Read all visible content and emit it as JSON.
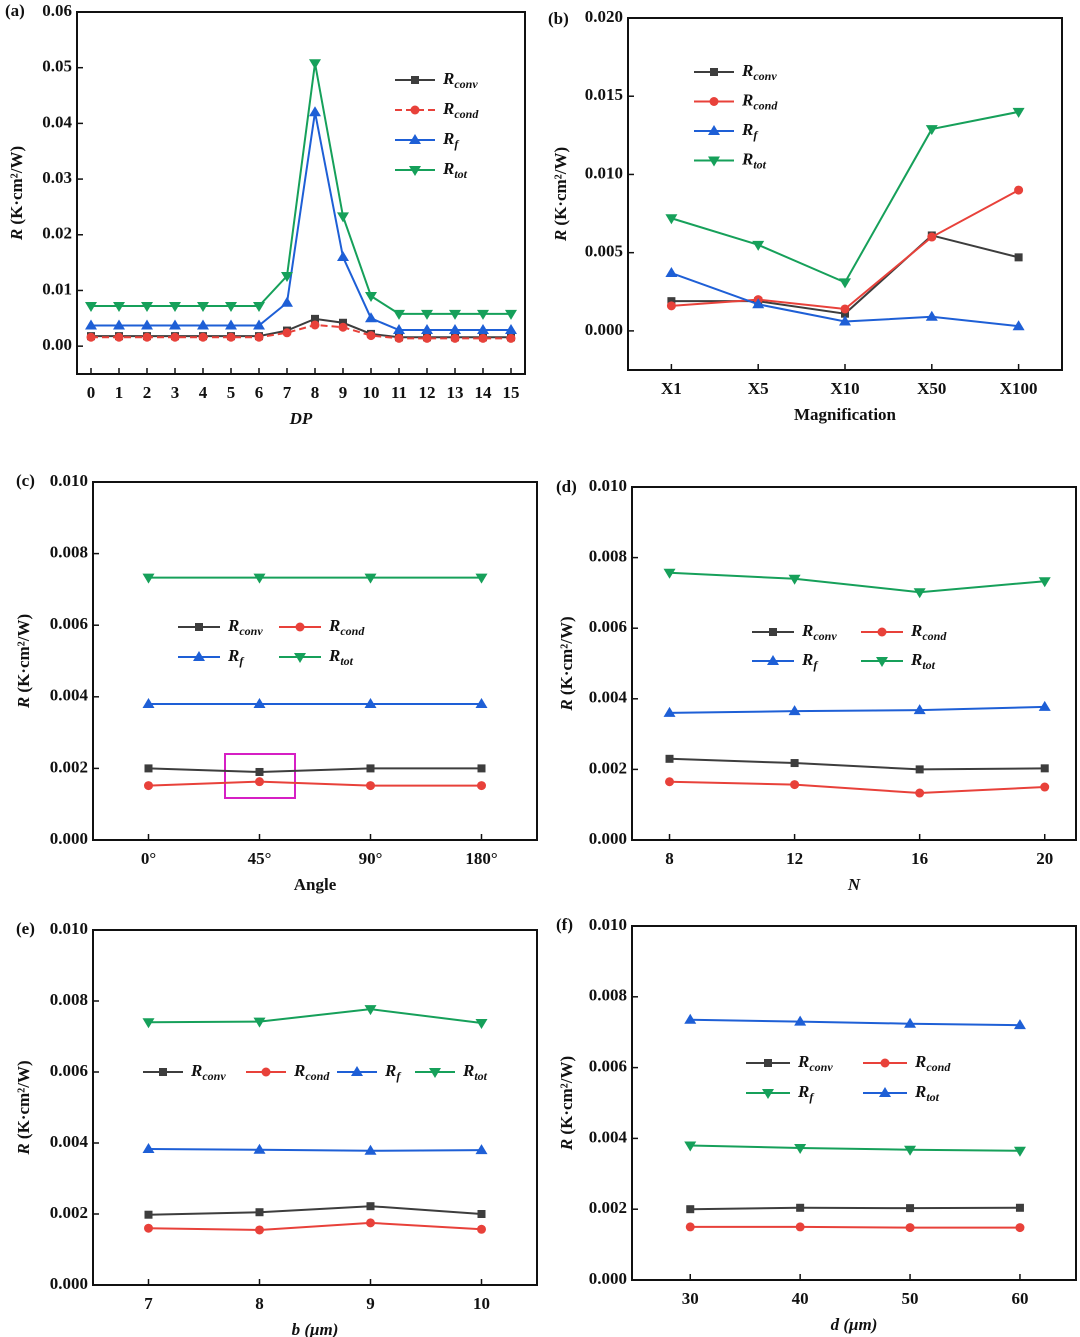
{
  "chart_data": [
    {
      "type": "line",
      "label": "(a)",
      "xlabel": "DP",
      "ylabel": "R (K·cm²/W)",
      "x": [
        0,
        1,
        2,
        3,
        4,
        5,
        6,
        7,
        8,
        9,
        10,
        11,
        12,
        13,
        14,
        15
      ],
      "xlim": [
        -0.5,
        15.5
      ],
      "xticks": [
        0,
        1,
        2,
        3,
        4,
        5,
        6,
        7,
        8,
        9,
        10,
        11,
        12,
        13,
        14,
        15
      ],
      "ylim": [
        -0.005,
        0.06
      ],
      "yticks": [
        {
          "value": 0,
          "label": "0.00"
        },
        0.01,
        0.02,
        0.03,
        0.04,
        0.05,
        0.06
      ],
      "series": [
        {
          "name": "Rconv",
          "color": "#3d3d3d",
          "marker": "square",
          "values": [
            0.0018,
            0.0018,
            0.0018,
            0.0018,
            0.0018,
            0.0018,
            0.0018,
            0.0028,
            0.0049,
            0.0042,
            0.0022,
            0.0016,
            0.0016,
            0.0016,
            0.0016,
            0.0016
          ]
        },
        {
          "name": "Rcond",
          "color": "#e8413a",
          "marker": "circle",
          "linestyle": "dashed",
          "values": [
            0.0016,
            0.0016,
            0.0016,
            0.0016,
            0.0016,
            0.0016,
            0.0016,
            0.0024,
            0.0038,
            0.0034,
            0.0019,
            0.0014,
            0.0014,
            0.0014,
            0.0014,
            0.0014
          ]
        },
        {
          "name": "Rf",
          "color": "#1e5fd6",
          "marker": "triangle-up",
          "values": [
            0.0037,
            0.0037,
            0.0037,
            0.0037,
            0.0037,
            0.0037,
            0.0037,
            0.0078,
            0.042,
            0.016,
            0.005,
            0.0029,
            0.0029,
            0.0029,
            0.0029,
            0.0029
          ]
        },
        {
          "name": "Rtot",
          "color": "#16a05a",
          "marker": "triangle-down",
          "values": [
            0.0072,
            0.0072,
            0.0072,
            0.0072,
            0.0072,
            0.0072,
            0.0072,
            0.0126,
            0.0508,
            0.0233,
            0.009,
            0.0058,
            0.0058,
            0.0058,
            0.0058,
            0.0058
          ]
        }
      ]
    },
    {
      "type": "line",
      "label": "(b)",
      "xlabel": "Magnification",
      "ylabel": "R (K·cm²/W)",
      "categories": [
        "X1",
        "X5",
        "X10",
        "X50",
        "X100"
      ],
      "ylim": [
        -0.0025,
        0.02
      ],
      "yticks": [
        {
          "value": 0,
          "label": "0.000"
        },
        0.005,
        {
          "value": 0.01,
          "label": "0.010"
        },
        0.015,
        {
          "value": 0.02,
          "label": "0.020"
        }
      ],
      "series": [
        {
          "name": "Rconv",
          "color": "#3d3d3d",
          "marker": "square",
          "values": [
            0.0019,
            0.0019,
            0.0011,
            0.0061,
            0.0047
          ]
        },
        {
          "name": "Rcond",
          "color": "#e8413a",
          "marker": "circle",
          "values": [
            0.0016,
            0.002,
            0.0014,
            0.006,
            0.009
          ]
        },
        {
          "name": "Rf",
          "color": "#1e5fd6",
          "marker": "triangle-up",
          "values": [
            0.0037,
            0.0017,
            0.0006,
            0.0009,
            0.0003
          ]
        },
        {
          "name": "Rtot",
          "color": "#16a05a",
          "marker": "triangle-down",
          "values": [
            0.0072,
            0.0055,
            0.0031,
            0.0129,
            0.014
          ]
        }
      ]
    },
    {
      "type": "line",
      "label": "(c)",
      "xlabel": "Angle",
      "ylabel": "R (K·cm²/W)",
      "categories": [
        "0°",
        "45°",
        "90°",
        "180°"
      ],
      "ylim": [
        0,
        0.01
      ],
      "yticks": [
        {
          "value": 0,
          "label": "0.000"
        },
        0.002,
        0.004,
        0.006,
        0.008,
        {
          "value": 0.01,
          "label": "0.010"
        }
      ],
      "series": [
        {
          "name": "Rconv",
          "color": "#3d3d3d",
          "marker": "square",
          "values": [
            0.002,
            0.0019,
            0.002,
            0.002
          ]
        },
        {
          "name": "Rcond",
          "color": "#e8413a",
          "marker": "circle",
          "values": [
            0.00152,
            0.00163,
            0.00152,
            0.00152
          ]
        },
        {
          "name": "Rf",
          "color": "#1e5fd6",
          "marker": "triangle-up",
          "values": [
            0.0038,
            0.0038,
            0.0038,
            0.0038
          ]
        },
        {
          "name": "Rtot",
          "color": "#16a05a",
          "marker": "triangle-down",
          "values": [
            0.00733,
            0.00733,
            0.00733,
            0.00733
          ]
        }
      ]
    },
    {
      "type": "line",
      "label": "(d)",
      "xlabel": "N",
      "ylabel": "R (K·cm²/W)",
      "x": [
        8,
        12,
        16,
        20
      ],
      "xlim": [
        6.8,
        21
      ],
      "xticks": [
        8,
        12,
        16,
        20
      ],
      "ylim": [
        0,
        0.01
      ],
      "yticks": [
        {
          "value": 0,
          "label": "0.000"
        },
        0.002,
        0.004,
        0.006,
        0.008,
        {
          "value": 0.01,
          "label": "0.010"
        }
      ],
      "series": [
        {
          "name": "Rconv",
          "color": "#3d3d3d",
          "marker": "square",
          "values": [
            0.0023,
            0.00218,
            0.002,
            0.00203
          ]
        },
        {
          "name": "Rcond",
          "color": "#e8413a",
          "marker": "circle",
          "values": [
            0.00165,
            0.00157,
            0.00133,
            0.0015
          ]
        },
        {
          "name": "Rf",
          "color": "#1e5fd6",
          "marker": "triangle-up",
          "values": [
            0.0036,
            0.00365,
            0.00368,
            0.00377
          ]
        },
        {
          "name": "Rtot",
          "color": "#16a05a",
          "marker": "triangle-down",
          "values": [
            0.00757,
            0.0074,
            0.00702,
            0.00733
          ]
        }
      ]
    },
    {
      "type": "line",
      "label": "(e)",
      "xlabel": "b (μm)",
      "ylabel": "R (K·cm²/W)",
      "x": [
        7,
        8,
        9,
        10
      ],
      "xlim": [
        6.5,
        10.5
      ],
      "xticks": [
        7,
        8,
        9,
        10
      ],
      "ylim": [
        0,
        0.01
      ],
      "yticks": [
        {
          "value": 0,
          "label": "0.000"
        },
        0.002,
        0.004,
        0.006,
        0.008,
        {
          "value": 0.01,
          "label": "0.010"
        }
      ],
      "series": [
        {
          "name": "Rconv",
          "color": "#3d3d3d",
          "marker": "square",
          "values": [
            0.00198,
            0.00205,
            0.00222,
            0.002
          ]
        },
        {
          "name": "Rcond",
          "color": "#e8413a",
          "marker": "circle",
          "values": [
            0.0016,
            0.00155,
            0.00175,
            0.00157
          ]
        },
        {
          "name": "Rf",
          "color": "#1e5fd6",
          "marker": "triangle-up",
          "values": [
            0.00383,
            0.00381,
            0.00378,
            0.0038
          ]
        },
        {
          "name": "Rtot",
          "color": "#16a05a",
          "marker": "triangle-down",
          "values": [
            0.0074,
            0.00742,
            0.00777,
            0.00738
          ]
        }
      ]
    },
    {
      "type": "line",
      "label": "(f)",
      "xlabel": "d (μm)",
      "ylabel": "R (K·cm²/W)",
      "x": [
        30,
        40,
        50,
        60
      ],
      "xlim": [
        24.7,
        65.1
      ],
      "xticks": [
        30,
        40,
        50,
        60
      ],
      "ylim": [
        0,
        0.01
      ],
      "yticks": [
        {
          "value": 0,
          "label": "0.000"
        },
        0.002,
        0.004,
        0.006,
        0.008,
        {
          "value": 0.01,
          "label": "0.010"
        }
      ],
      "series": [
        {
          "name": "Rconv",
          "color": "#3d3d3d",
          "marker": "square",
          "values": [
            0.002,
            0.00204,
            0.00203,
            0.00204
          ]
        },
        {
          "name": "Rcond",
          "color": "#e8413a",
          "marker": "circle",
          "values": [
            0.0015,
            0.0015,
            0.00148,
            0.00148
          ]
        },
        {
          "name": "Rf",
          "color": "#16a05a",
          "marker": "triangle-down",
          "values": [
            0.0038,
            0.00373,
            0.00368,
            0.00365
          ]
        },
        {
          "name": "Rtot",
          "color": "#1e5fd6",
          "marker": "triangle-up",
          "values": [
            0.00735,
            0.0073,
            0.00724,
            0.0072
          ]
        }
      ]
    }
  ]
}
